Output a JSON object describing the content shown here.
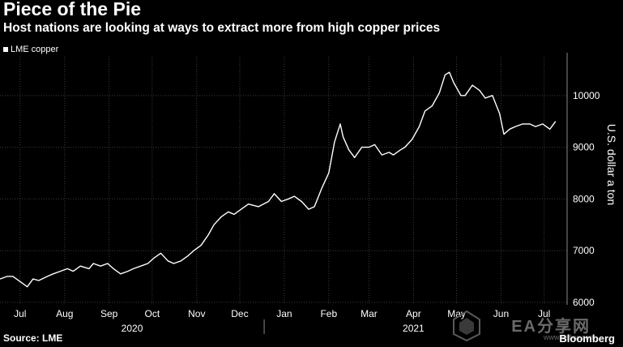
{
  "header": {
    "title": "Piece of the Pie",
    "subtitle": "Host nations are looking at ways to extract more from high copper prices"
  },
  "footer": {
    "source": "Source: LME",
    "brand": "Bloomberg",
    "watermark_text": "EA分享网",
    "watermark_url": "www.eafxw.com"
  },
  "chart_data": {
    "type": "line",
    "title": "Piece of the Pie",
    "subtitle": "Host nations are looking at ways to extract more from high copper prices",
    "xlabel": "",
    "ylabel": "U.S. dollar a ton",
    "ylim": [
      5950,
      10750
    ],
    "yticks": [
      6000,
      7000,
      8000,
      9000,
      10000
    ],
    "ytick_labels": [
      "6000",
      "7000",
      "8000",
      "9000",
      "10000"
    ],
    "xlim": [
      "2020-07-01",
      "2021-07-31"
    ],
    "xticks": [
      {
        "date": "2020-07-15",
        "label": "Jul"
      },
      {
        "date": "2020-08-15",
        "label": "Aug"
      },
      {
        "date": "2020-09-15",
        "label": "Sep"
      },
      {
        "date": "2020-10-15",
        "label": "Oct"
      },
      {
        "date": "2020-11-15",
        "label": "Nov"
      },
      {
        "date": "2020-12-15",
        "label": "Dec"
      },
      {
        "date": "2021-01-15",
        "label": "Jan"
      },
      {
        "date": "2021-02-15",
        "label": "Feb"
      },
      {
        "date": "2021-03-15",
        "label": "Mar"
      },
      {
        "date": "2021-04-15",
        "label": "Apr"
      },
      {
        "date": "2021-05-15",
        "label": "May"
      },
      {
        "date": "2021-06-15",
        "label": "Jun"
      },
      {
        "date": "2021-07-15",
        "label": "Jul"
      }
    ],
    "year_labels": [
      {
        "date": "2020-10-01",
        "label": "2020"
      },
      {
        "date": "2021-04-15",
        "label": "2021"
      }
    ],
    "grid": true,
    "legend": "top-left",
    "series": [
      {
        "name": "LME copper",
        "color": "#ffffff",
        "x": [
          "2020-07-01",
          "2020-07-06",
          "2020-07-10",
          "2020-07-15",
          "2020-07-20",
          "2020-07-24",
          "2020-07-28",
          "2020-08-03",
          "2020-08-07",
          "2020-08-12",
          "2020-08-17",
          "2020-08-21",
          "2020-08-26",
          "2020-09-01",
          "2020-09-04",
          "2020-09-09",
          "2020-09-14",
          "2020-09-18",
          "2020-09-23",
          "2020-09-28",
          "2020-10-02",
          "2020-10-07",
          "2020-10-12",
          "2020-10-16",
          "2020-10-21",
          "2020-10-26",
          "2020-10-30",
          "2020-11-04",
          "2020-11-09",
          "2020-11-13",
          "2020-11-18",
          "2020-11-23",
          "2020-11-27",
          "2020-12-02",
          "2020-12-07",
          "2020-12-11",
          "2020-12-16",
          "2020-12-21",
          "2020-12-28",
          "2021-01-04",
          "2021-01-08",
          "2021-01-13",
          "2021-01-18",
          "2021-01-22",
          "2021-01-27",
          "2021-02-01",
          "2021-02-05",
          "2021-02-10",
          "2021-02-15",
          "2021-02-19",
          "2021-02-23",
          "2021-02-25",
          "2021-03-01",
          "2021-03-05",
          "2021-03-10",
          "2021-03-15",
          "2021-03-19",
          "2021-03-24",
          "2021-03-29",
          "2021-04-01",
          "2021-04-06",
          "2021-04-09",
          "2021-04-14",
          "2021-04-19",
          "2021-04-23",
          "2021-04-28",
          "2021-05-03",
          "2021-05-07",
          "2021-05-10",
          "2021-05-13",
          "2021-05-18",
          "2021-05-21",
          "2021-05-26",
          "2021-05-31",
          "2021-06-04",
          "2021-06-09",
          "2021-06-14",
          "2021-06-17",
          "2021-06-21",
          "2021-06-25",
          "2021-06-30",
          "2021-07-05",
          "2021-07-09",
          "2021-07-14",
          "2021-07-19",
          "2021-07-23"
        ],
        "y": [
          6450,
          6500,
          6500,
          6400,
          6300,
          6450,
          6420,
          6500,
          6550,
          6600,
          6650,
          6600,
          6700,
          6650,
          6750,
          6700,
          6750,
          6650,
          6550,
          6600,
          6650,
          6700,
          6750,
          6850,
          6950,
          6800,
          6750,
          6800,
          6900,
          7000,
          7100,
          7300,
          7500,
          7650,
          7750,
          7700,
          7800,
          7900,
          7850,
          7950,
          8100,
          7950,
          8000,
          8050,
          7950,
          7800,
          7850,
          8200,
          8500,
          9100,
          9450,
          9200,
          8950,
          8800,
          9000,
          9000,
          9050,
          8850,
          8900,
          8850,
          8950,
          9000,
          9150,
          9400,
          9700,
          9800,
          10050,
          10400,
          10450,
          10250,
          10000,
          10000,
          10200,
          10100,
          9950,
          10000,
          9650,
          9250,
          9350,
          9400,
          9450,
          9450,
          9400,
          9450,
          9350,
          9500
        ]
      }
    ]
  }
}
